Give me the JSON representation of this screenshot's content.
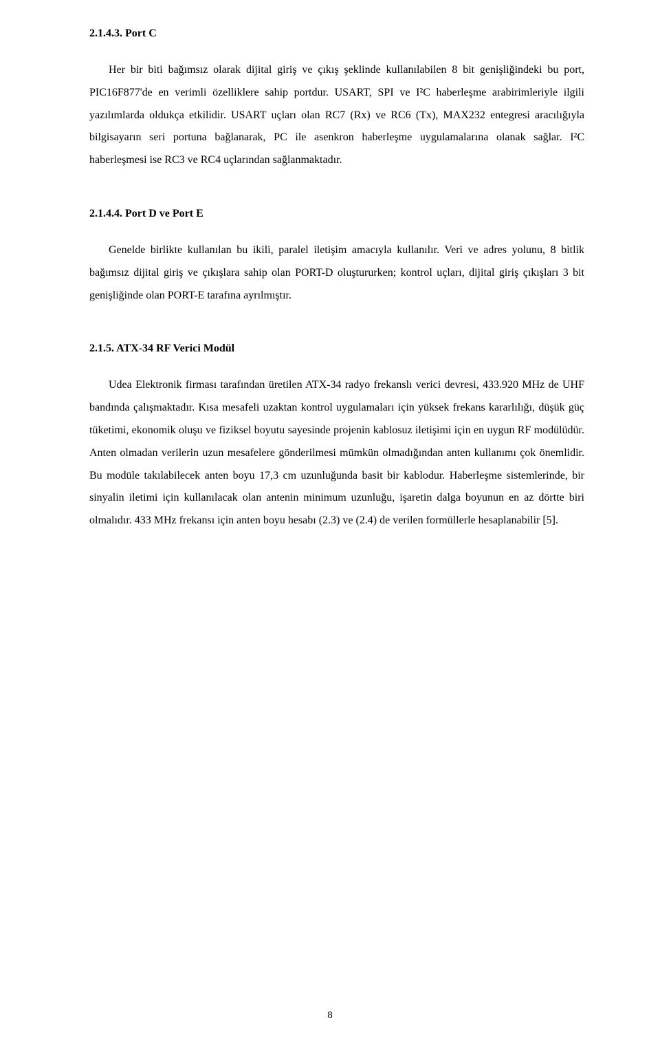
{
  "sections": {
    "portC": {
      "heading": "2.1.4.3.  Port C",
      "para1": "Her bir biti bağımsız olarak dijital giriş ve çıkış şeklinde kullanılabilen 8 bit genişliğindeki bu port, PIC16F877'de en verimli özelliklere sahip portdur. USART, SPI ve I²C haberleşme arabirimleriyle ilgili yazılımlarda oldukça etkilidir. USART uçları olan RC7 (Rx) ve RC6 (Tx), MAX232 entegresi aracılığıyla bilgisayarın seri portuna bağlanarak, PC ile asenkron haberleşme uygulamalarına olanak sağlar. I²C haberleşmesi ise RC3 ve RC4 uçlarından sağlanmaktadır."
    },
    "portDE": {
      "heading": "2.1.4.4.  Port D ve Port E",
      "para1": "Genelde birlikte kullanılan bu ikili, paralel iletişim amacıyla kullanılır. Veri ve adres yolunu, 8 bitlik bağımsız dijital giriş ve çıkışlara sahip olan PORT-D oluştururken; kontrol uçları, dijital giriş çıkışları 3 bit genişliğinde olan PORT-E tarafına ayrılmıştır."
    },
    "atx34": {
      "heading": "2.1.5.  ATX-34 RF Verici Modül",
      "para1": "Udea Elektronik firması tarafından üretilen ATX-34 radyo frekanslı verici devresi, 433.920 MHz de UHF bandında çalışmaktadır. Kısa mesafeli uzaktan kontrol uygulamaları için yüksek frekans kararlılığı, düşük güç tüketimi, ekonomik oluşu ve fiziksel boyutu sayesinde projenin kablosuz iletişimi için en uygun RF modülüdür. Anten olmadan verilerin uzun mesafelere gönderilmesi mümkün olmadığından anten kullanımı çok önemlidir. Bu modüle takılabilecek anten boyu 17,3 cm uzunluğunda basit bir kablodur. Haberleşme sistemlerinde, bir sinyalin iletimi için kullanılacak olan antenin minimum uzunluğu, işaretin dalga boyunun en az dörtte biri olmalıdır.  433 MHz frekansı için anten boyu hesabı (2.3) ve (2.4) de verilen formüllerle hesaplanabilir [5]."
    }
  },
  "pageNumber": "8"
}
